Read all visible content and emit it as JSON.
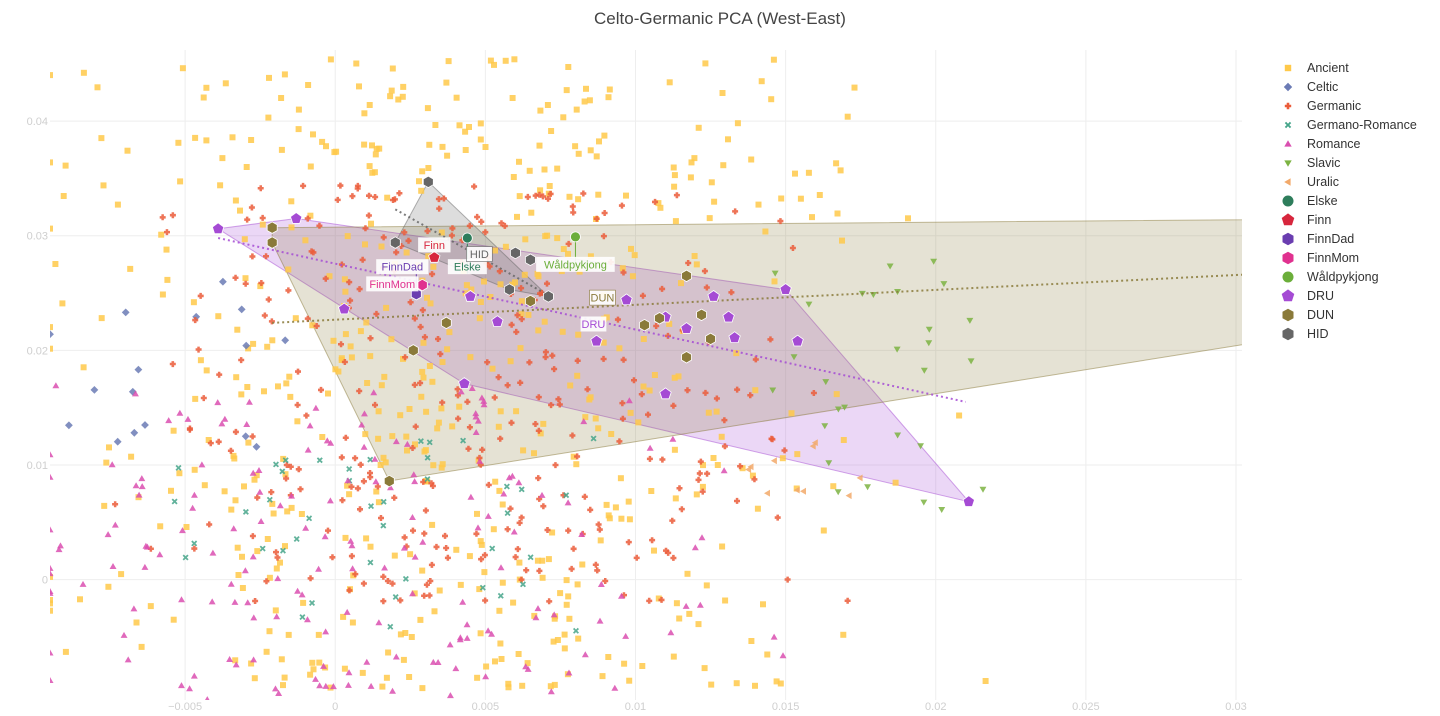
{
  "chart_data": {
    "type": "scatter",
    "title": "Celto-Germanic PCA (West-East)",
    "xlabel": "",
    "ylabel": "",
    "xlim": [
      -0.0095,
      0.0302
    ],
    "ylim": [
      -0.0105,
      0.0462
    ],
    "x_ticks": [
      -0.005,
      0,
      0.005,
      0.01,
      0.015,
      0.02,
      0.025,
      0.03
    ],
    "x_tick_labels": [
      "−0.005",
      "0",
      "0.005",
      "0.01",
      "0.015",
      "0.02",
      "0.025",
      "0.03"
    ],
    "y_ticks": [
      0,
      0.01,
      0.02,
      0.03,
      0.04
    ],
    "y_tick_labels": [
      "0",
      "0.01",
      "0.02",
      "0.03",
      "0.04"
    ],
    "grid": true,
    "legend_position": "right",
    "background_groups": [
      {
        "name": "Ancient",
        "symbol": "square",
        "color": "#FFC94A",
        "count": 560,
        "x_range": [
          -0.0095,
          0.028
        ],
        "y_range": [
          -0.0095,
          0.0455
        ],
        "x_center": 0.004,
        "x_spread": 0.008
      },
      {
        "name": "Celtic",
        "symbol": "diamond",
        "color": "#6B7BB5",
        "count": 16,
        "x_range": [
          -0.0095,
          -0.0005
        ],
        "y_range": [
          0.011,
          0.0265
        ],
        "x_center": -0.006,
        "x_spread": 0.0025
      },
      {
        "name": "Germanic",
        "symbol": "cross",
        "color": "#EB5C3A",
        "count": 320,
        "x_range": [
          -0.008,
          0.021
        ],
        "y_range": [
          -0.002,
          0.0345
        ],
        "x_center": 0.004,
        "x_spread": 0.0065
      },
      {
        "name": "Germano-Romance",
        "symbol": "x",
        "color": "#45A58A",
        "count": 42,
        "x_range": [
          -0.006,
          0.014
        ],
        "y_range": [
          -0.005,
          0.013
        ],
        "x_center": 0.002,
        "x_spread": 0.005
      },
      {
        "name": "Romance",
        "symbol": "triangle-up",
        "color": "#DA4FB0",
        "count": 175,
        "x_range": [
          -0.0095,
          0.022
        ],
        "y_range": [
          -0.0105,
          0.017
        ],
        "x_center": 0.001,
        "x_spread": 0.007
      },
      {
        "name": "Slavic",
        "symbol": "triangle-down",
        "color": "#7CB342",
        "count": 28,
        "x_range": [
          0.012,
          0.024
        ],
        "y_range": [
          0.006,
          0.029
        ],
        "x_center": 0.018,
        "x_spread": 0.003
      },
      {
        "name": "Uralic",
        "symbol": "triangle-left",
        "color": "#F2A96A",
        "count": 10,
        "x_range": [
          0.012,
          0.019
        ],
        "y_range": [
          0.007,
          0.012
        ],
        "x_center": 0.015,
        "x_spread": 0.002
      }
    ],
    "individuals": [
      {
        "name": "Elske",
        "symbol": "circle",
        "color": "#2E7D5B",
        "x": 0.0044,
        "y": 0.0298,
        "label_dy": -0.0025
      },
      {
        "name": "Finn",
        "symbol": "pentagon",
        "color": "#D7263D",
        "x": 0.0033,
        "y": 0.0281,
        "label_dy": 0.0011
      },
      {
        "name": "FinnDad",
        "symbol": "hexagon",
        "color": "#6A3DB0",
        "x": 0.0027,
        "y": 0.0249,
        "label_dy": 0.0024
      },
      {
        "name": "FinnMom",
        "symbol": "hexagon",
        "color": "#E0318F",
        "x": 0.0029,
        "y": 0.0257,
        "label_dy": 0.0001
      },
      {
        "name": "Wåldpykjong",
        "symbol": "circle",
        "color": "#6BAE3A",
        "x": 0.008,
        "y": 0.0299,
        "label_dy": -0.0024
      }
    ],
    "groups": [
      {
        "name": "DRU",
        "symbol": "pentagon",
        "color": "#A54BD4",
        "x": [
          -0.0039,
          -0.0013,
          0.0003,
          0.0043,
          0.0054,
          0.0045,
          0.0087,
          0.0097,
          0.011,
          0.0117,
          0.0126,
          0.0131,
          0.0133,
          0.015,
          0.0154,
          0.011,
          0.0211
        ],
        "y": [
          0.0306,
          0.0315,
          0.0236,
          0.0171,
          0.0225,
          0.0247,
          0.0208,
          0.0244,
          0.0229,
          0.0219,
          0.0247,
          0.0229,
          0.0211,
          0.0253,
          0.0208,
          0.0162,
          0.0068
        ],
        "hull": [
          [
            -0.0039,
            0.0306
          ],
          [
            -0.0013,
            0.0315
          ],
          [
            0.015,
            0.0253
          ],
          [
            0.0211,
            0.0068
          ],
          [
            0.0043,
            0.0171
          ]
        ],
        "trend": [
          [
            -0.0039,
            0.0298
          ],
          [
            0.021,
            0.0155
          ]
        ],
        "label": {
          "text": "DRU",
          "x": 0.0086,
          "y": 0.0223
        }
      },
      {
        "name": "DUN",
        "symbol": "hexagon",
        "color": "#8A7A3A",
        "x": [
          -0.0021,
          -0.0021,
          0.0018,
          0.0026,
          0.0037,
          0.0065,
          0.0103,
          0.0117,
          0.0122,
          0.0125,
          0.0108,
          0.0117
        ],
        "y": [
          0.0307,
          0.0294,
          0.0086,
          0.02,
          0.0224,
          0.0243,
          0.0222,
          0.0194,
          0.0231,
          0.021,
          0.0228,
          0.0265
        ],
        "hull": [
          [
            -0.0021,
            0.0307
          ],
          [
            0.035,
            0.0315
          ],
          [
            0.035,
            0.0225
          ],
          [
            0.0018,
            0.0086
          ],
          [
            -0.0021,
            0.0294
          ]
        ],
        "trend": [
          [
            -0.0021,
            0.0224
          ],
          [
            0.0302,
            0.0266
          ]
        ],
        "label": {
          "text": "DUN",
          "x": 0.0089,
          "y": 0.0246
        }
      },
      {
        "name": "HID",
        "symbol": "hexagon",
        "color": "#666666",
        "x": [
          0.002,
          0.0031,
          0.006,
          0.0058,
          0.0071,
          0.0065
        ],
        "y": [
          0.0294,
          0.0347,
          0.0285,
          0.0253,
          0.0247,
          0.0279
        ],
        "hull": [
          [
            0.002,
            0.0294
          ],
          [
            0.0031,
            0.0347
          ],
          [
            0.0071,
            0.0247
          ],
          [
            0.0058,
            0.0253
          ]
        ],
        "trend": [
          [
            0.002,
            0.0323
          ],
          [
            0.0071,
            0.0248
          ]
        ],
        "label": {
          "text": "HID",
          "x": 0.0048,
          "y": 0.0284
        }
      }
    ]
  }
}
